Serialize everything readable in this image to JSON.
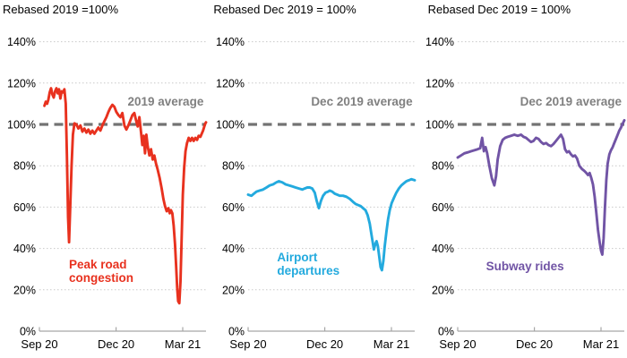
{
  "page": {
    "background": "#ffffff"
  },
  "y_axis": {
    "tick_labels": [
      "0%",
      "20%",
      "40%",
      "60%",
      "80%",
      "100%",
      "120%",
      "140%"
    ],
    "tick_values": [
      0,
      20,
      40,
      60,
      80,
      100,
      120,
      140
    ],
    "min": 0,
    "max": 140,
    "grid": "dotted"
  },
  "x_axis": {
    "tick_labels": [
      "Sep 20",
      "Dec 20",
      "Mar 21"
    ],
    "tick_fracs": [
      0,
      46,
      86
    ]
  },
  "styles": {
    "grid_color": "#c9c9c9",
    "axis_color": "#a6a6a6",
    "dashed_color": "#737373",
    "avg_label_color": "#808080",
    "text_color": "#000000"
  },
  "chart_data": [
    {
      "type": "line",
      "title": "Rebased 2019 =100%",
      "series_name": "Peak road congestion",
      "label_lines": [
        "Peak road",
        "congestion"
      ],
      "average_label": "2019 average",
      "baseline_value": 100,
      "color": "#e8311e",
      "points": [
        [
          3,
          109
        ],
        [
          3.8,
          111
        ],
        [
          4.6,
          110
        ],
        [
          5.4,
          112
        ],
        [
          6.2,
          115.5
        ],
        [
          7,
          117.5
        ],
        [
          7.8,
          114.5
        ],
        [
          8.6,
          113
        ],
        [
          9.4,
          116
        ],
        [
          10.2,
          117.5
        ],
        [
          11,
          115
        ],
        [
          11.8,
          117
        ],
        [
          12.6,
          112.5
        ],
        [
          13.4,
          116
        ],
        [
          14.2,
          115.5
        ],
        [
          15,
          117
        ],
        [
          15.8,
          110
        ],
        [
          16.5,
          85
        ],
        [
          17.2,
          55
        ],
        [
          17.8,
          43
        ],
        [
          18.5,
          60
        ],
        [
          19.3,
          80
        ],
        [
          20.1,
          95
        ],
        [
          21,
          100.5
        ],
        [
          22.2,
          100
        ],
        [
          23.4,
          98
        ],
        [
          24.6,
          99.5
        ],
        [
          25.8,
          96.5
        ],
        [
          27,
          98
        ],
        [
          28.2,
          96
        ],
        [
          29.4,
          97.5
        ],
        [
          30.6,
          95.5
        ],
        [
          31.8,
          97
        ],
        [
          33,
          95.5
        ],
        [
          34.2,
          97
        ],
        [
          35.4,
          98.5
        ],
        [
          36.6,
          97
        ],
        [
          37.8,
          99.5
        ],
        [
          39,
          101.5
        ],
        [
          40.2,
          103.5
        ],
        [
          41.4,
          106
        ],
        [
          42.6,
          108
        ],
        [
          43.8,
          109.5
        ],
        [
          45,
          108.5
        ],
        [
          46.2,
          106
        ],
        [
          47.4,
          104.5
        ],
        [
          48.6,
          103.5
        ],
        [
          49.8,
          105.5
        ],
        [
          51,
          99.5
        ],
        [
          52.2,
          97.5
        ],
        [
          53.4,
          99.5
        ],
        [
          54.6,
          102
        ],
        [
          55.8,
          104.5
        ],
        [
          57,
          105.5
        ],
        [
          58,
          102
        ],
        [
          59,
          99
        ],
        [
          60,
          103.5
        ],
        [
          61,
          96
        ],
        [
          61.8,
          90
        ],
        [
          62.6,
          94.5
        ],
        [
          63.4,
          86
        ],
        [
          64.2,
          95
        ],
        [
          65,
          89.5
        ],
        [
          66,
          85
        ],
        [
          67,
          88
        ],
        [
          68,
          83
        ],
        [
          69,
          85
        ],
        [
          70,
          81
        ],
        [
          71,
          78
        ],
        [
          72.2,
          74
        ],
        [
          73.4,
          69
        ],
        [
          74.4,
          64
        ],
        [
          75.4,
          60.5
        ],
        [
          76.4,
          58
        ],
        [
          77.4,
          59.5
        ],
        [
          78.2,
          57
        ],
        [
          79,
          58.5
        ],
        [
          79.8,
          57
        ],
        [
          80.6,
          51
        ],
        [
          81.4,
          42
        ],
        [
          82.1,
          31
        ],
        [
          82.7,
          21
        ],
        [
          83.3,
          14.5
        ],
        [
          84,
          13.5
        ],
        [
          84.7,
          24
        ],
        [
          85.4,
          45
        ],
        [
          86.1,
          66
        ],
        [
          86.9,
          79
        ],
        [
          87.7,
          87
        ],
        [
          88.6,
          91
        ],
        [
          89.6,
          93.5
        ],
        [
          90.6,
          92
        ],
        [
          91.6,
          93.5
        ],
        [
          92.6,
          92
        ],
        [
          93.6,
          93.5
        ],
        [
          94.6,
          92.5
        ],
        [
          95.6,
          94.5
        ],
        [
          96.6,
          94
        ],
        [
          97.4,
          95.5
        ],
        [
          98.2,
          97
        ],
        [
          99,
          99
        ],
        [
          99.6,
          100.5
        ],
        [
          100,
          101
        ]
      ]
    },
    {
      "type": "line",
      "title": "Rebased Dec 2019 = 100%",
      "series_name": "Airport departures",
      "label_lines": [
        "Airport",
        "departures"
      ],
      "average_label": "Dec 2019 average",
      "baseline_value": 100,
      "color": "#23aade",
      "points": [
        [
          0,
          66
        ],
        [
          2,
          65.5
        ],
        [
          3.5,
          66.5
        ],
        [
          5,
          67.5
        ],
        [
          7,
          68
        ],
        [
          9,
          68.5
        ],
        [
          11,
          69.5
        ],
        [
          13,
          70.5
        ],
        [
          15,
          71
        ],
        [
          17,
          72
        ],
        [
          18.5,
          72.5
        ],
        [
          20.5,
          72
        ],
        [
          22.5,
          71
        ],
        [
          24.5,
          70.5
        ],
        [
          26.5,
          70
        ],
        [
          28.5,
          69.5
        ],
        [
          30.5,
          69
        ],
        [
          32.5,
          68.5
        ],
        [
          34,
          69
        ],
        [
          35.5,
          69.5
        ],
        [
          37,
          69.5
        ],
        [
          38.5,
          69
        ],
        [
          40,
          67
        ],
        [
          41.2,
          63
        ],
        [
          42.5,
          59.5
        ],
        [
          43.7,
          63
        ],
        [
          45,
          65.5
        ],
        [
          46.5,
          67
        ],
        [
          48,
          67.5
        ],
        [
          49,
          68
        ],
        [
          50.5,
          67.5
        ],
        [
          52,
          66.5
        ],
        [
          53.5,
          66
        ],
        [
          55,
          65.5
        ],
        [
          57,
          65.5
        ],
        [
          59,
          65
        ],
        [
          61,
          64
        ],
        [
          63,
          62.5
        ],
        [
          64.5,
          61.5
        ],
        [
          66,
          61
        ],
        [
          67.5,
          60.5
        ],
        [
          69,
          59.5
        ],
        [
          70.5,
          58.5
        ],
        [
          71.8,
          56
        ],
        [
          73,
          52
        ],
        [
          74,
          47
        ],
        [
          74.8,
          43
        ],
        [
          75.5,
          39.5
        ],
        [
          76.3,
          42
        ],
        [
          77.1,
          43.5
        ],
        [
          77.9,
          41
        ],
        [
          78.7,
          36
        ],
        [
          79.5,
          31
        ],
        [
          80.3,
          29.5
        ],
        [
          81.2,
          34
        ],
        [
          82,
          41
        ],
        [
          83,
          48
        ],
        [
          84,
          54
        ],
        [
          85,
          58.5
        ],
        [
          86.2,
          62
        ],
        [
          87.5,
          64.5
        ],
        [
          89,
          67
        ],
        [
          90.5,
          69
        ],
        [
          92,
          70.5
        ],
        [
          93.5,
          71.5
        ],
        [
          95,
          72.5
        ],
        [
          96.5,
          73
        ],
        [
          98,
          73.5
        ],
        [
          100,
          73
        ]
      ]
    },
    {
      "type": "line",
      "title": "Rebased Dec 2019 = 100%",
      "series_name": "Subway rides",
      "label_lines": [
        "Subway rides"
      ],
      "average_label": "Dec 2019 average",
      "baseline_value": 100,
      "color": "#7154a5",
      "points": [
        [
          0,
          84
        ],
        [
          2,
          85
        ],
        [
          4,
          86
        ],
        [
          6,
          86.5
        ],
        [
          8,
          87
        ],
        [
          10,
          87.5
        ],
        [
          12,
          88
        ],
        [
          13.5,
          88.5
        ],
        [
          14.7,
          93.5
        ],
        [
          15.7,
          87
        ],
        [
          16.7,
          89
        ],
        [
          17.7,
          86
        ],
        [
          19,
          80
        ],
        [
          20.5,
          74
        ],
        [
          22,
          70.5
        ],
        [
          23,
          75
        ],
        [
          24,
          83
        ],
        [
          25.5,
          89.5
        ],
        [
          27,
          92.5
        ],
        [
          28.5,
          93.5
        ],
        [
          30,
          94
        ],
        [
          32,
          94.5
        ],
        [
          34,
          95
        ],
        [
          36,
          94.5
        ],
        [
          38,
          95
        ],
        [
          39.5,
          94
        ],
        [
          41,
          93.5
        ],
        [
          42.5,
          92.5
        ],
        [
          44,
          91.5
        ],
        [
          45.5,
          92
        ],
        [
          47,
          93.5
        ],
        [
          48.5,
          93
        ],
        [
          50,
          91.5
        ],
        [
          51.5,
          90.5
        ],
        [
          53,
          91
        ],
        [
          54.5,
          90
        ],
        [
          56,
          89.5
        ],
        [
          57.5,
          90.5
        ],
        [
          59,
          92
        ],
        [
          60.5,
          93.5
        ],
        [
          62,
          95
        ],
        [
          63.2,
          93
        ],
        [
          64.4,
          88
        ],
        [
          65.6,
          86.5
        ],
        [
          66.8,
          87
        ],
        [
          68,
          85.5
        ],
        [
          69.2,
          84.5
        ],
        [
          70.4,
          85
        ],
        [
          71.6,
          83.5
        ],
        [
          73,
          80
        ],
        [
          74.5,
          78.5
        ],
        [
          76,
          77.5
        ],
        [
          77.2,
          76.5
        ],
        [
          78.2,
          75.5
        ],
        [
          79.2,
          76.5
        ],
        [
          80.2,
          74
        ],
        [
          81.2,
          71
        ],
        [
          82.2,
          65
        ],
        [
          83.2,
          57
        ],
        [
          84.2,
          49
        ],
        [
          85.2,
          43
        ],
        [
          86,
          39
        ],
        [
          86.8,
          37
        ],
        [
          87.6,
          45
        ],
        [
          88.4,
          60
        ],
        [
          89.2,
          73
        ],
        [
          90,
          81
        ],
        [
          91,
          85.5
        ],
        [
          92,
          87.5
        ],
        [
          93,
          89
        ],
        [
          94,
          91
        ],
        [
          95,
          93
        ],
        [
          96,
          95
        ],
        [
          97,
          97
        ],
        [
          98,
          98.5
        ],
        [
          98.8,
          100
        ],
        [
          99.4,
          101
        ],
        [
          100,
          102
        ]
      ]
    }
  ]
}
